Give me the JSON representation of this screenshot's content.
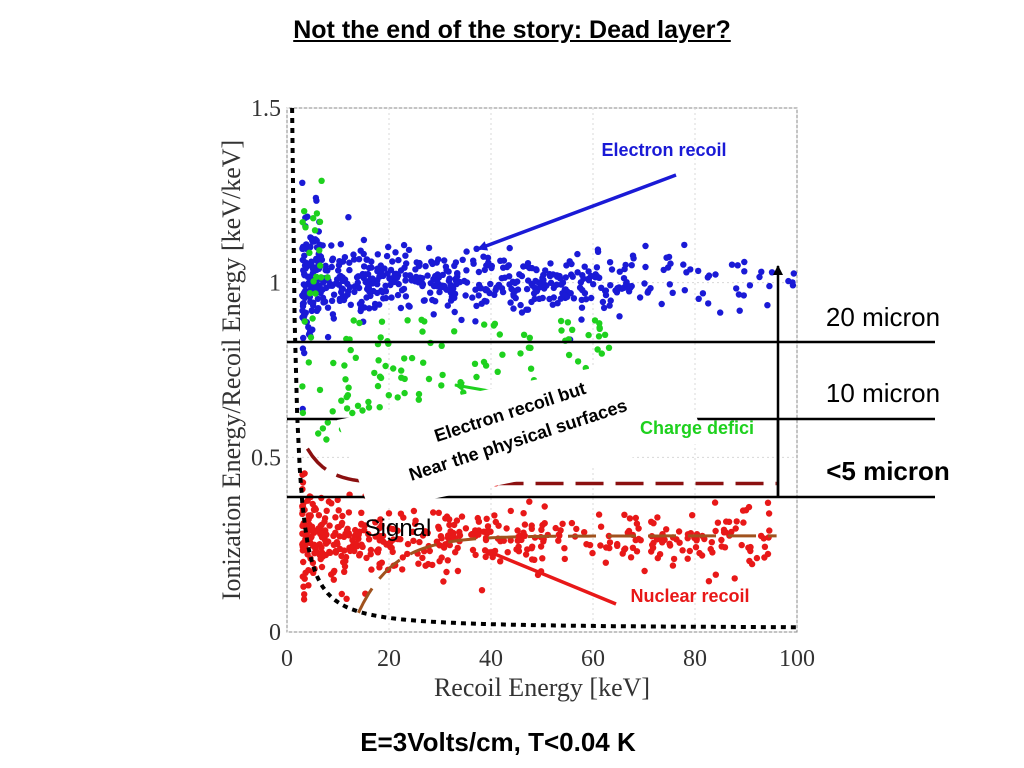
{
  "title": "Not the end of the story: Dead layer?",
  "caption": "E=3Volts/cm, T<0.04 K",
  "chart_data": {
    "type": "scatter",
    "xlabel": "Recoil Energy [keV]",
    "ylabel": "Ionization Energy/Recoil Energy [keV/keV]",
    "xlim": [
      0,
      100
    ],
    "ylim": [
      0,
      1.5
    ],
    "x_ticks": [
      "0",
      "20",
      "40",
      "60",
      "80",
      "100"
    ],
    "y_ticks": [
      "0",
      "0.5",
      "1",
      "1.5"
    ],
    "grid": true,
    "series": [
      {
        "name": "Electron recoil",
        "color": "#1a1ad6",
        "y_center": 1.0,
        "x_range": [
          3,
          100
        ],
        "count": 700
      },
      {
        "name": "Charge deficit",
        "color": "#1ed11e",
        "y_center": 0.72,
        "x_range": [
          3,
          65
        ],
        "count": 170
      },
      {
        "name": "Nuclear recoil",
        "color": "#e81818",
        "y_center": 0.3,
        "x_range": [
          3,
          95
        ],
        "count": 480
      }
    ],
    "annotations": {
      "electron_recoil": "Electron recoil",
      "nuclear_recoil": "Nuclear recoil",
      "charge_deficit": "Charge defici",
      "signal": "Signal",
      "surface_line1": "Electron recoil but",
      "surface_line2": "Near the physical surfaces"
    },
    "layers": [
      {
        "label": "20 micron",
        "y": 0.83
      },
      {
        "label": "10 micron",
        "y": 0.61
      },
      {
        "label": "<5 micron",
        "y": 0.39
      }
    ]
  }
}
